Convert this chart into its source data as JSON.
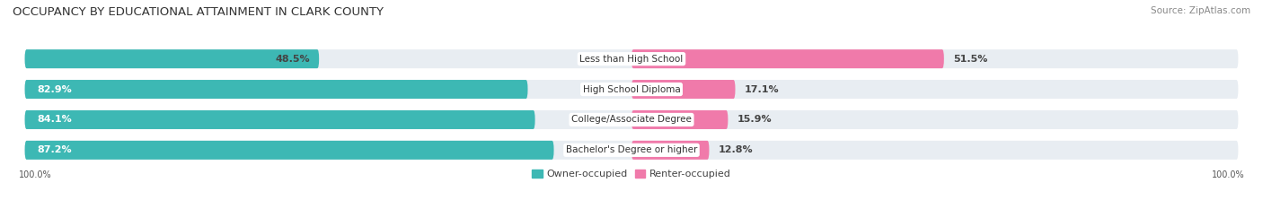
{
  "title": "OCCUPANCY BY EDUCATIONAL ATTAINMENT IN CLARK COUNTY",
  "source": "Source: ZipAtlas.com",
  "categories": [
    "Less than High School",
    "High School Diploma",
    "College/Associate Degree",
    "Bachelor's Degree or higher"
  ],
  "owner_pct": [
    48.5,
    82.9,
    84.1,
    87.2
  ],
  "renter_pct": [
    51.5,
    17.1,
    15.9,
    12.8
  ],
  "owner_color": "#3db8b4",
  "renter_color": "#f07aaa",
  "bg_color": "#ffffff",
  "bar_row_bg": "#e8edf2",
  "bar_height": 0.62,
  "title_fontsize": 9.5,
  "source_fontsize": 7.5,
  "bar_label_fontsize": 8,
  "cat_label_fontsize": 7.5,
  "legend_fontsize": 8
}
